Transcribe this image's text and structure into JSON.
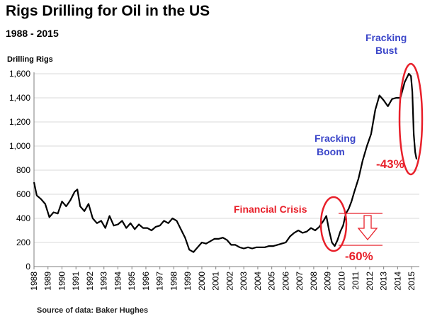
{
  "chart_data": {
    "type": "line",
    "title": "Rigs Drilling for Oil in the US",
    "subtitle": "1988 - 2015",
    "ylabel": "Drilling Rigs",
    "source": "Source of data: Baker Hughes",
    "ylim": [
      0,
      1600
    ],
    "yticks": [
      0,
      200,
      400,
      600,
      800,
      1000,
      1200,
      1400,
      1600
    ],
    "ytick_labels": [
      "0",
      "200",
      "400",
      "600",
      "800",
      "1,000",
      "1,200",
      "1,400",
      "1,600"
    ],
    "xlim": [
      1988,
      2015.55
    ],
    "xticks": [
      1988,
      1989,
      1990,
      1991,
      1992,
      1993,
      1994,
      1995,
      1996,
      1997,
      1998,
      1999,
      2000,
      2001,
      2002,
      2003,
      2004,
      2005,
      2006,
      2007,
      2008,
      2009,
      2010,
      2011,
      2012,
      2013,
      2014,
      2015
    ],
    "grid": true,
    "series": [
      {
        "color": "#000000",
        "x": [
          1988,
          1988.2,
          1988.5,
          1988.8,
          1989.1,
          1989.4,
          1989.7,
          1990,
          1990.3,
          1990.6,
          1990.9,
          1991.1,
          1991.3,
          1991.6,
          1991.9,
          1992.2,
          1992.5,
          1992.8,
          1993.1,
          1993.4,
          1993.7,
          1994,
          1994.3,
          1994.6,
          1994.9,
          1995.2,
          1995.5,
          1995.8,
          1996.1,
          1996.4,
          1996.7,
          1997,
          1997.3,
          1997.6,
          1997.9,
          1998.2,
          1998.5,
          1998.8,
          1999.1,
          1999.4,
          1999.7,
          2000,
          2000.3,
          2000.6,
          2000.9,
          2001.2,
          2001.5,
          2001.8,
          2002.1,
          2002.4,
          2002.7,
          2003,
          2003.3,
          2003.6,
          2003.9,
          2004.2,
          2004.5,
          2004.8,
          2005.1,
          2005.4,
          2005.7,
          2006,
          2006.3,
          2006.6,
          2006.9,
          2007.2,
          2007.5,
          2007.8,
          2008.1,
          2008.4,
          2008.7,
          2008.9,
          2009.1,
          2009.3,
          2009.5,
          2009.7,
          2009.9,
          2010.1,
          2010.3,
          2010.5,
          2010.7,
          2010.9,
          2011.2,
          2011.5,
          2011.8,
          2012.1,
          2012.4,
          2012.7,
          2013,
          2013.3,
          2013.6,
          2013.9,
          2014.2,
          2014.5,
          2014.8,
          2014.95,
          2015.05,
          2015.15,
          2015.25,
          2015.35
        ],
        "y": [
          700,
          590,
          560,
          520,
          410,
          450,
          440,
          540,
          500,
          550,
          620,
          640,
          500,
          460,
          520,
          400,
          360,
          380,
          320,
          420,
          340,
          350,
          380,
          320,
          360,
          310,
          350,
          320,
          320,
          300,
          330,
          340,
          380,
          360,
          400,
          380,
          310,
          240,
          140,
          120,
          160,
          200,
          190,
          210,
          230,
          230,
          240,
          220,
          180,
          180,
          160,
          150,
          160,
          150,
          160,
          160,
          160,
          170,
          170,
          180,
          190,
          200,
          250,
          280,
          300,
          280,
          290,
          320,
          300,
          330,
          380,
          420,
          300,
          200,
          170,
          220,
          290,
          340,
          440,
          480,
          540,
          620,
          730,
          880,
          1000,
          1100,
          1300,
          1420,
          1380,
          1330,
          1390,
          1400,
          1400,
          1530,
          1600,
          1580,
          1450,
          1100,
          950,
          890
        ]
      }
    ],
    "annotations": {
      "fracking_bust": [
        "Fracking",
        "Bust"
      ],
      "fracking_boom": [
        "Fracking",
        "Boom"
      ],
      "financial_crisis": "Financial Crisis",
      "drop_43": "-43%",
      "drop_60": "-60%"
    },
    "annotation_colors": {
      "blue": "#3b46c9",
      "red": "#e8202a"
    }
  }
}
